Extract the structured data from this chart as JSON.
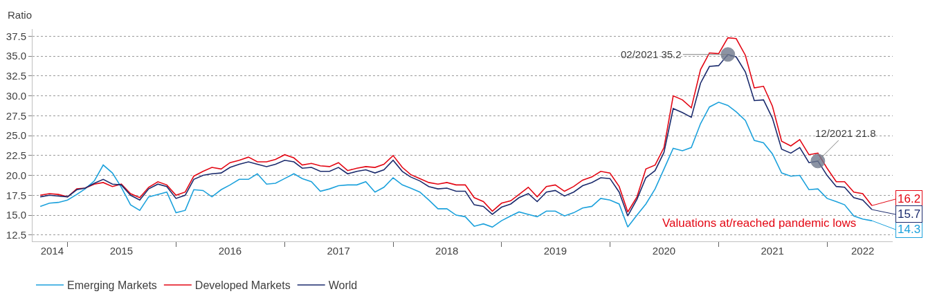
{
  "chart_data": {
    "type": "line",
    "ylabel": "Ratio",
    "x": [
      "2014-10",
      "2014-11",
      "2014-12",
      "2015-01",
      "2015-02",
      "2015-03",
      "2015-04",
      "2015-05",
      "2015-06",
      "2015-07",
      "2015-08",
      "2015-09",
      "2015-10",
      "2015-11",
      "2015-12",
      "2016-01",
      "2016-02",
      "2016-03",
      "2016-04",
      "2016-05",
      "2016-06",
      "2016-07",
      "2016-08",
      "2016-09",
      "2016-10",
      "2016-11",
      "2016-12",
      "2017-01",
      "2017-02",
      "2017-03",
      "2017-04",
      "2017-05",
      "2017-06",
      "2017-07",
      "2017-08",
      "2017-09",
      "2017-10",
      "2017-11",
      "2017-12",
      "2018-01",
      "2018-02",
      "2018-03",
      "2018-04",
      "2018-05",
      "2018-06",
      "2018-07",
      "2018-08",
      "2018-09",
      "2018-10",
      "2018-11",
      "2018-12",
      "2019-01",
      "2019-02",
      "2019-03",
      "2019-04",
      "2019-05",
      "2019-06",
      "2019-07",
      "2019-08",
      "2019-09",
      "2019-10",
      "2019-11",
      "2019-12",
      "2020-01",
      "2020-02",
      "2020-03",
      "2020-04",
      "2020-05",
      "2020-06",
      "2020-07",
      "2020-08",
      "2020-09",
      "2020-10",
      "2020-11",
      "2020-12",
      "2021-01",
      "2021-02",
      "2021-03",
      "2021-04",
      "2021-05",
      "2021-06",
      "2021-07",
      "2021-08",
      "2021-09",
      "2021-10",
      "2021-11",
      "2021-12",
      "2022-01",
      "2022-02",
      "2022-03",
      "2022-04",
      "2022-05",
      "2022-06"
    ],
    "series": [
      {
        "name": "Emerging Markets",
        "color": "#1ba1dc",
        "values": [
          16.1,
          16.5,
          16.6,
          16.9,
          17.6,
          18.3,
          19.3,
          21.3,
          20.3,
          18.5,
          16.3,
          15.6,
          17.3,
          17.6,
          17.9,
          15.3,
          15.6,
          18.2,
          18.1,
          17.3,
          18.2,
          18.8,
          19.5,
          19.5,
          20.2,
          18.9,
          19.0,
          19.6,
          20.2,
          19.6,
          19.2,
          18.0,
          18.3,
          18.7,
          18.8,
          18.8,
          19.2,
          17.9,
          18.5,
          19.7,
          18.8,
          18.4,
          17.9,
          16.9,
          15.8,
          15.8,
          15.0,
          14.8,
          13.6,
          13.9,
          13.5,
          14.3,
          14.9,
          15.4,
          15.1,
          14.8,
          15.5,
          15.5,
          14.9,
          15.3,
          15.9,
          16.1,
          17.1,
          16.9,
          16.4,
          13.5,
          15.0,
          16.4,
          18.3,
          20.8,
          23.4,
          23.1,
          23.5,
          26.5,
          28.6,
          29.2,
          28.8,
          28.0,
          26.9,
          24.4,
          24.1,
          22.7,
          20.3,
          19.9,
          20.0,
          18.2,
          18.3,
          17.1,
          16.7,
          16.3,
          14.9,
          14.5,
          14.3
        ],
        "value_labels": [
          null,
          null,
          null,
          null,
          null,
          null,
          null,
          null,
          null,
          null,
          null,
          null,
          null,
          null,
          null,
          null,
          null,
          null,
          null,
          null,
          null,
          null,
          null,
          null,
          null,
          null,
          null,
          null,
          null,
          null,
          null,
          null,
          null,
          null,
          null,
          null,
          null,
          null,
          null,
          null,
          null,
          null,
          null,
          null,
          null,
          null,
          null,
          null,
          null,
          null,
          null,
          null,
          null,
          null,
          null,
          null,
          null,
          null,
          null,
          null,
          null,
          null,
          null,
          null,
          null,
          null,
          null,
          null,
          null,
          null,
          null,
          null,
          null,
          null,
          null,
          null,
          null,
          null,
          null,
          null,
          null,
          null,
          null,
          null,
          null,
          null,
          null,
          null,
          null,
          null,
          null,
          null,
          "14.3"
        ]
      },
      {
        "name": "Developed Markets",
        "color": "#e30613",
        "values": [
          17.5,
          17.7,
          17.6,
          17.3,
          18.3,
          18.4,
          18.9,
          19.1,
          18.6,
          18.9,
          17.7,
          17.2,
          18.5,
          19.2,
          18.8,
          17.5,
          17.9,
          19.9,
          20.5,
          21.0,
          20.8,
          21.6,
          21.9,
          22.3,
          21.7,
          21.7,
          22.0,
          22.6,
          22.2,
          21.3,
          21.5,
          21.2,
          21.1,
          21.6,
          20.6,
          20.9,
          21.1,
          21.0,
          21.4,
          22.5,
          21.0,
          20.1,
          19.6,
          19.1,
          18.9,
          19.1,
          18.8,
          18.8,
          17.2,
          16.7,
          15.5,
          16.5,
          16.8,
          17.6,
          18.5,
          17.3,
          18.6,
          18.8,
          18.0,
          18.6,
          19.4,
          19.8,
          20.5,
          20.3,
          18.6,
          15.4,
          17.3,
          20.8,
          21.3,
          23.5,
          30.0,
          29.5,
          28.5,
          33.3,
          35.4,
          35.3,
          37.3,
          37.2,
          35.1,
          31.0,
          31.2,
          28.7,
          24.3,
          23.7,
          24.5,
          22.6,
          22.8,
          20.9,
          19.2,
          19.2,
          17.9,
          17.7,
          16.2
        ],
        "value_labels": [
          null,
          null,
          null,
          null,
          null,
          null,
          null,
          null,
          null,
          null,
          null,
          null,
          null,
          null,
          null,
          null,
          null,
          null,
          null,
          null,
          null,
          null,
          null,
          null,
          null,
          null,
          null,
          null,
          null,
          null,
          null,
          null,
          null,
          null,
          null,
          null,
          null,
          null,
          null,
          null,
          null,
          null,
          null,
          null,
          null,
          null,
          null,
          null,
          null,
          null,
          null,
          null,
          null,
          null,
          null,
          null,
          null,
          null,
          null,
          null,
          null,
          null,
          null,
          null,
          null,
          null,
          null,
          null,
          null,
          null,
          null,
          null,
          null,
          null,
          null,
          null,
          null,
          null,
          null,
          null,
          null,
          null,
          null,
          null,
          null,
          null,
          null,
          null,
          null,
          null,
          null,
          null,
          "16.2"
        ]
      },
      {
        "name": "World",
        "color": "#1a2a6c",
        "values": [
          17.3,
          17.5,
          17.4,
          17.3,
          18.2,
          18.4,
          19.0,
          19.5,
          18.9,
          18.8,
          17.5,
          16.9,
          18.3,
          18.9,
          18.6,
          17.1,
          17.5,
          19.5,
          20.0,
          20.2,
          20.3,
          21.0,
          21.4,
          21.7,
          21.4,
          21.1,
          21.4,
          21.9,
          21.7,
          20.9,
          21.0,
          20.5,
          20.5,
          21.0,
          20.2,
          20.5,
          20.7,
          20.3,
          20.7,
          21.9,
          20.5,
          19.8,
          19.3,
          18.6,
          18.3,
          18.4,
          18.0,
          18.0,
          16.3,
          16.1,
          15.1,
          16.0,
          16.4,
          17.2,
          17.7,
          16.7,
          17.9,
          18.1,
          17.4,
          17.9,
          18.7,
          19.1,
          19.7,
          19.6,
          17.9,
          14.9,
          17.0,
          19.7,
          20.6,
          22.9,
          28.4,
          27.9,
          27.3,
          31.6,
          33.7,
          33.8,
          35.2,
          34.9,
          33.0,
          29.4,
          29.5,
          27.2,
          23.3,
          22.8,
          23.5,
          21.6,
          21.8,
          20.0,
          18.6,
          18.5,
          17.2,
          16.9,
          15.7
        ],
        "value_labels": [
          null,
          null,
          null,
          null,
          null,
          null,
          null,
          null,
          null,
          null,
          null,
          null,
          null,
          null,
          null,
          null,
          null,
          null,
          null,
          null,
          null,
          null,
          null,
          null,
          null,
          null,
          null,
          null,
          null,
          null,
          null,
          null,
          null,
          null,
          null,
          null,
          null,
          null,
          null,
          null,
          null,
          null,
          null,
          null,
          null,
          null,
          null,
          null,
          null,
          null,
          null,
          null,
          null,
          null,
          null,
          null,
          null,
          null,
          null,
          null,
          null,
          null,
          null,
          null,
          null,
          null,
          null,
          null,
          null,
          null,
          null,
          null,
          null,
          null,
          null,
          null,
          null,
          null,
          null,
          null,
          null,
          null,
          null,
          null,
          null,
          null,
          null,
          null,
          null,
          null,
          null,
          null,
          "15.7"
        ]
      }
    ],
    "xlim": [
      "2014-09-05",
      "2022-08-10"
    ],
    "xticks": [
      {
        "value": "2014-11-10",
        "label": "2014"
      },
      {
        "value": "2015-01-01",
        "label": null
      },
      {
        "value": "2015-07-01",
        "label": "2015"
      },
      {
        "value": "2016-01-01",
        "label": null
      },
      {
        "value": "2016-07-01",
        "label": "2016"
      },
      {
        "value": "2017-01-01",
        "label": null
      },
      {
        "value": "2017-07-01",
        "label": "2017"
      },
      {
        "value": "2018-01-01",
        "label": null
      },
      {
        "value": "2018-07-01",
        "label": "2018"
      },
      {
        "value": "2019-01-01",
        "label": null
      },
      {
        "value": "2019-07-01",
        "label": "2019"
      },
      {
        "value": "2020-01-01",
        "label": null
      },
      {
        "value": "2020-07-01",
        "label": "2020"
      },
      {
        "value": "2021-01-01",
        "label": null
      },
      {
        "value": "2021-07-01",
        "label": "2021"
      },
      {
        "value": "2022-01-01",
        "label": null
      },
      {
        "value": "2022-05-01",
        "label": "2022"
      }
    ],
    "ylim": [
      11.7,
      38.4
    ],
    "yticks": [
      {
        "value": 12.5,
        "label": "12.5"
      },
      {
        "value": 15,
        "label": "15.0"
      },
      {
        "value": 17.5,
        "label": "17.5"
      },
      {
        "value": 20,
        "label": "20.0"
      },
      {
        "value": 22.5,
        "label": "22.5"
      },
      {
        "value": 25,
        "label": "25.0"
      },
      {
        "value": 27.5,
        "label": "27.5"
      },
      {
        "value": 30,
        "label": "30.0"
      },
      {
        "value": 32.5,
        "label": "32.5"
      },
      {
        "value": 35,
        "label": "35.0"
      },
      {
        "value": 37.5,
        "label": "37.5"
      }
    ],
    "grid": "y",
    "legend": "bottom left",
    "line_style": "solid",
    "annotations": [
      {
        "text": "02/2021 35.2",
        "x": "2021-02",
        "y": 35.2
      },
      {
        "text": "12/2021 21.8",
        "x": "2021-12",
        "y": 21.8
      },
      "Valuations at/reached pandemic lows"
    ]
  }
}
